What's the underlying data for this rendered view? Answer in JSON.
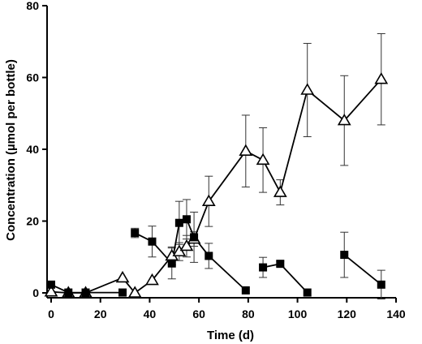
{
  "chart_data": {
    "type": "scatter",
    "title": "",
    "xlabel": "Time (d)",
    "ylabel": "Concentration (µmol per bottle)",
    "xlim": [
      0,
      140
    ],
    "ylim": [
      0,
      80
    ],
    "xticks": [
      0,
      20,
      40,
      60,
      80,
      100,
      120,
      140
    ],
    "yticks": [
      0,
      20,
      40,
      60,
      80
    ],
    "xtick_labels": [
      "0",
      "20",
      "40",
      "60",
      "80",
      "100",
      "120",
      "140"
    ],
    "ytick_labels": [
      "0",
      "20",
      "40",
      "60",
      "80"
    ],
    "grid": false,
    "legend": "none",
    "series": [
      {
        "marker": "open-triangle",
        "color": "#000000",
        "connected": true,
        "points": [
          {
            "x": 0,
            "y": 0.3,
            "err": 0
          },
          {
            "x": 7,
            "y": 0,
            "err": 0
          },
          {
            "x": 14,
            "y": 0,
            "err": 0
          },
          {
            "x": 29,
            "y": 4.2,
            "err": 0
          },
          {
            "x": 34,
            "y": 0,
            "err": 0
          },
          {
            "x": 41,
            "y": 3.5,
            "err": 0
          },
          {
            "x": 49,
            "y": 10.3,
            "err": 2.5
          },
          {
            "x": 52,
            "y": 11.5,
            "err": 2.5
          },
          {
            "x": 55,
            "y": 13.0,
            "err": 3.0
          },
          {
            "x": 58,
            "y": 15.0,
            "err": 2.0
          },
          {
            "x": 64,
            "y": 25.5,
            "err": 7.0
          },
          {
            "x": 79,
            "y": 39.5,
            "err": 10.0
          },
          {
            "x": 86,
            "y": 37.0,
            "err": 9.0
          },
          {
            "x": 93,
            "y": 28.0,
            "err": 3.5
          },
          {
            "x": 104,
            "y": 56.5,
            "err": 13.0
          },
          {
            "x": 119,
            "y": 48.0,
            "err": 12.5
          },
          {
            "x": 134,
            "y": 59.5,
            "err": 12.7
          }
        ]
      },
      {
        "marker": "filled-square",
        "color": "#000000",
        "connected_groups": [
          [
            0,
            1,
            2,
            3
          ],
          [
            4,
            5,
            6,
            7,
            8,
            9,
            10,
            11
          ],
          [
            12,
            13,
            14
          ],
          [
            15,
            16
          ]
        ],
        "points": [
          {
            "x": 0,
            "y": 2.3,
            "err": 0
          },
          {
            "x": 7,
            "y": 0.1,
            "err": 0
          },
          {
            "x": 14,
            "y": 0.1,
            "err": 0
          },
          {
            "x": 29,
            "y": 0.1,
            "err": 0
          },
          {
            "x": 34,
            "y": 16.7,
            "err": 1.3
          },
          {
            "x": 41,
            "y": 14.3,
            "err": 4.3
          },
          {
            "x": 49,
            "y": 8.2,
            "err": 4.3
          },
          {
            "x": 52,
            "y": 19.5,
            "err": 6.0
          },
          {
            "x": 55,
            "y": 20.5,
            "err": 5.5
          },
          {
            "x": 58,
            "y": 15.5,
            "err": 7.0
          },
          {
            "x": 64,
            "y": 10.3,
            "err": 3.5
          },
          {
            "x": 79,
            "y": 0.7,
            "err": 0
          },
          {
            "x": 86,
            "y": 7.1,
            "err": 2.8
          },
          {
            "x": 93,
            "y": 8.1,
            "err": 0.7
          },
          {
            "x": 104,
            "y": 0.1,
            "err": 0
          },
          {
            "x": 119,
            "y": 10.6,
            "err": 6.3
          },
          {
            "x": 134,
            "y": 2.3,
            "err": 4.0
          }
        ]
      }
    ]
  }
}
